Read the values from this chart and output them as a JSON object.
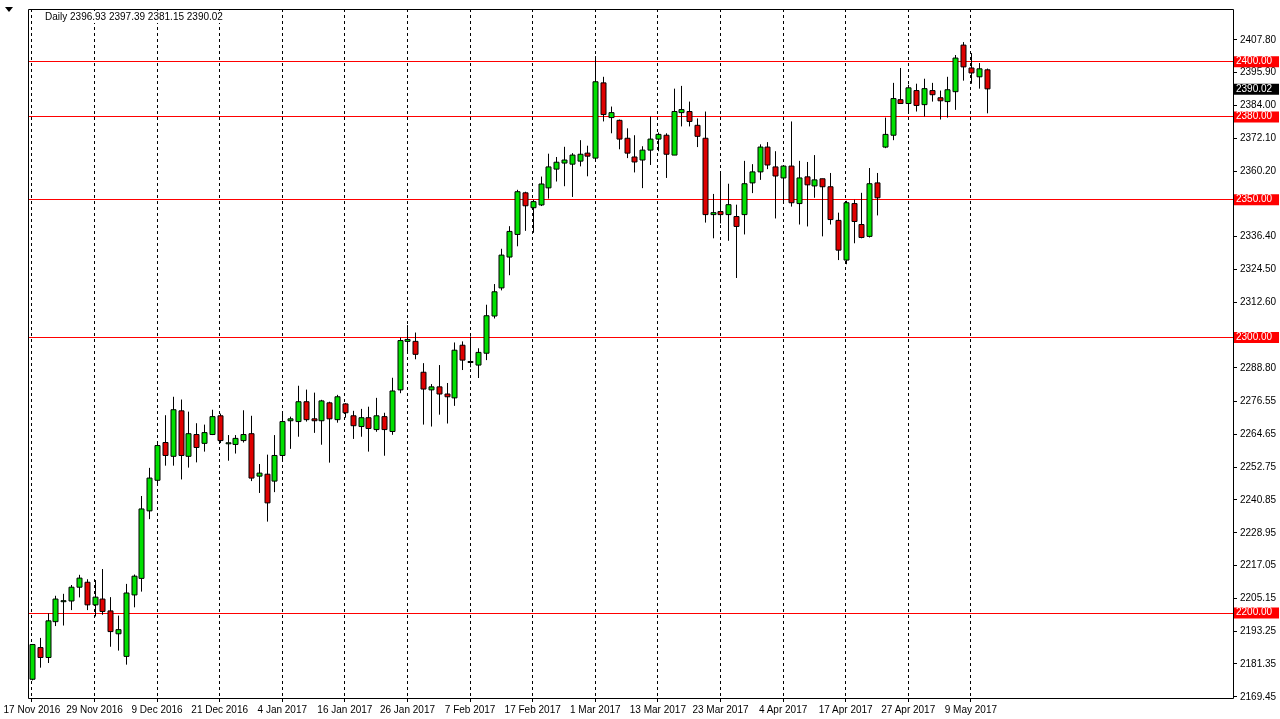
{
  "chart_data": {
    "type": "candlestick",
    "title": "Daily 2396.93 2397.39 2381.15 2390.02",
    "categories": [
      "17 Nov 2016",
      null,
      null,
      null,
      null,
      null,
      null,
      null,
      "29 Nov 2016",
      null,
      null,
      null,
      null,
      null,
      null,
      null,
      "9 Dec 2016",
      null,
      null,
      null,
      null,
      null,
      null,
      null,
      "21 Dec 2016",
      null,
      null,
      null,
      null,
      null,
      null,
      null,
      "4 Jan 2017",
      null,
      null,
      null,
      null,
      null,
      null,
      null,
      "16 Jan 2017",
      null,
      null,
      null,
      null,
      null,
      null,
      null,
      "26 Jan 2017",
      null,
      null,
      null,
      null,
      null,
      null,
      null,
      "7 Feb 2017",
      null,
      null,
      null,
      null,
      null,
      null,
      null,
      "17 Feb 2017",
      null,
      null,
      null,
      null,
      null,
      null,
      null,
      "1 Mar 2017",
      null,
      null,
      null,
      null,
      null,
      null,
      null,
      "13 Mar 2017",
      null,
      null,
      null,
      null,
      null,
      null,
      null,
      "23 Mar 2017",
      null,
      null,
      null,
      null,
      null,
      null,
      null,
      "4 Apr 2017",
      null,
      null,
      null,
      null,
      null,
      null,
      null,
      "17 Apr 2017",
      null,
      null,
      null,
      null,
      null,
      null,
      null,
      "27 Apr 2017",
      null,
      null,
      null,
      null,
      null,
      null,
      null,
      "9 May 2017",
      null,
      null,
      null,
      null,
      null,
      null,
      null,
      null,
      null,
      null,
      null,
      null,
      null,
      null,
      null,
      null,
      null,
      null,
      null,
      null,
      null,
      null,
      null,
      null,
      null,
      null,
      null,
      null,
      null,
      null,
      null,
      null,
      null
    ],
    "ohlc": [
      [
        2175.8,
        2188.6,
        2175.4,
        2188.4
      ],
      [
        2187.3,
        2190.8,
        2180.0,
        2183.7
      ],
      [
        2183.7,
        2199.7,
        2181.7,
        2197.0
      ],
      [
        2196.7,
        2206.1,
        2195.1,
        2204.9
      ],
      [
        2204.3,
        2206.8,
        2195.3,
        2204.3
      ],
      [
        2204.2,
        2210.0,
        2200.9,
        2209.2
      ],
      [
        2209.2,
        2213.7,
        2205.5,
        2212.5
      ],
      [
        2211.0,
        2212.1,
        2200.9,
        2202.8
      ],
      [
        2202.8,
        2211.8,
        2198.6,
        2205.6
      ],
      [
        2204.9,
        2215.8,
        2199.2,
        2200.4
      ],
      [
        2200.6,
        2205.6,
        2187.6,
        2193.1
      ],
      [
        2192.3,
        2198.9,
        2186.2,
        2193.8
      ],
      [
        2184.1,
        2210.4,
        2181.1,
        2207.1
      ],
      [
        2206.4,
        2213.8,
        2201.9,
        2213.2
      ],
      [
        2212.4,
        2242.3,
        2207.6,
        2237.6
      ],
      [
        2236.9,
        2252.5,
        2233.9,
        2248.8
      ],
      [
        2248.0,
        2261.7,
        2246.2,
        2260.6
      ],
      [
        2261.7,
        2271.6,
        2253.3,
        2257.0
      ],
      [
        2256.7,
        2278.3,
        2253.3,
        2273.6
      ],
      [
        2273.2,
        2277.3,
        2248.3,
        2257.0
      ],
      [
        2256.7,
        2272.9,
        2252.6,
        2264.9
      ],
      [
        2264.6,
        2268.7,
        2254.5,
        2259.9
      ],
      [
        2261.4,
        2268.2,
        2258.4,
        2265.3
      ],
      [
        2264.6,
        2273.6,
        2264.4,
        2271.1
      ],
      [
        2271.4,
        2272.2,
        2261.5,
        2262.4
      ],
      [
        2261.6,
        2264.4,
        2255.1,
        2261.6
      ],
      [
        2261.0,
        2264.4,
        2257.7,
        2263.2
      ],
      [
        2262.4,
        2273.4,
        2261.7,
        2264.6
      ],
      [
        2264.9,
        2271.4,
        2247.7,
        2248.8
      ],
      [
        2249.5,
        2253.9,
        2243.4,
        2250.6
      ],
      [
        2250.2,
        2257.3,
        2233.0,
        2239.8
      ],
      [
        2247.7,
        2264.4,
        2243.7,
        2257.0
      ],
      [
        2257.0,
        2272.5,
        2255.3,
        2269.3
      ],
      [
        2269.6,
        2271.1,
        2259.4,
        2270.3
      ],
      [
        2269.3,
        2282.3,
        2263.8,
        2276.5
      ],
      [
        2276.5,
        2280.9,
        2269.3,
        2270.0
      ],
      [
        2270.3,
        2279.8,
        2265.2,
        2269.6
      ],
      [
        2269.6,
        2277.2,
        2260.9,
        2276.8
      ],
      [
        2276.1,
        2276.5,
        2254.4,
        2270.3
      ],
      [
        2270.0,
        2279.0,
        2268.9,
        2278.3
      ],
      [
        2275.7,
        2276.0,
        2270.7,
        2272.5
      ],
      [
        2271.4,
        2273.2,
        2263.0,
        2267.8
      ],
      [
        2267.5,
        2273.9,
        2263.8,
        2270.7
      ],
      [
        2270.7,
        2274.7,
        2258.4,
        2266.8
      ],
      [
        2266.4,
        2277.9,
        2265.6,
        2271.4
      ],
      [
        2271.1,
        2272.5,
        2256.9,
        2266.4
      ],
      [
        2265.7,
        2285.2,
        2264.5,
        2280.4
      ],
      [
        2280.8,
        2299.8,
        2279.6,
        2298.7
      ],
      [
        2298.4,
        2304.3,
        2294.3,
        2299.1
      ],
      [
        2298.4,
        2301.6,
        2291.9,
        2293.7
      ],
      [
        2287.2,
        2290.5,
        2268.2,
        2281.1
      ],
      [
        2280.8,
        2282.9,
        2267.5,
        2281.9
      ],
      [
        2281.9,
        2289.8,
        2271.8,
        2279.3
      ],
      [
        2279.3,
        2283.3,
        2268.6,
        2278.3
      ],
      [
        2277.9,
        2298.0,
        2275.0,
        2295.2
      ],
      [
        2297.0,
        2298.4,
        2288.0,
        2291.6
      ],
      [
        2291.1,
        2300.2,
        2289.0,
        2291.1
      ],
      [
        2289.8,
        2295.9,
        2285.1,
        2294.4
      ],
      [
        2294.1,
        2311.7,
        2291.6,
        2307.7
      ],
      [
        2307.6,
        2319.2,
        2306.7,
        2316.4
      ],
      [
        2317.8,
        2332.0,
        2316.9,
        2329.7
      ],
      [
        2329.0,
        2340.2,
        2322.4,
        2338.3
      ],
      [
        2337.2,
        2353.4,
        2332.9,
        2352.7
      ],
      [
        2352.3,
        2352.7,
        2338.5,
        2347.6
      ],
      [
        2346.9,
        2349.8,
        2337.8,
        2349.1
      ],
      [
        2347.9,
        2358.2,
        2347.5,
        2355.5
      ],
      [
        2354.1,
        2366.5,
        2350.2,
        2361.7
      ],
      [
        2360.9,
        2365.3,
        2356.4,
        2363.4
      ],
      [
        2363.1,
        2369.0,
        2354.7,
        2364.2
      ],
      [
        2362.7,
        2366.7,
        2350.8,
        2366.0
      ],
      [
        2363.8,
        2371.4,
        2361.9,
        2366.3
      ],
      [
        2366.7,
        2369.4,
        2358.3,
        2365.6
      ],
      [
        2364.9,
        2401.9,
        2364.5,
        2392.6
      ],
      [
        2392.2,
        2394.4,
        2378.2,
        2380.7
      ],
      [
        2379.6,
        2383.6,
        2373.9,
        2381.4
      ],
      [
        2378.6,
        2378.9,
        2368.1,
        2371.8
      ],
      [
        2372.1,
        2375.7,
        2364.9,
        2366.7
      ],
      [
        2365.3,
        2373.2,
        2359.7,
        2363.5
      ],
      [
        2364.2,
        2369.2,
        2354.0,
        2367.8
      ],
      [
        2367.8,
        2380.0,
        2362.4,
        2371.8
      ],
      [
        2371.8,
        2374.2,
        2367.4,
        2373.5
      ],
      [
        2373.2,
        2373.9,
        2357.7,
        2366.3
      ],
      [
        2366.0,
        2390.1,
        2366.0,
        2381.8
      ],
      [
        2381.4,
        2391.1,
        2376.4,
        2382.5
      ],
      [
        2381.8,
        2385.4,
        2376.4,
        2378.2
      ],
      [
        2376.8,
        2379.3,
        2368.9,
        2372.8
      ],
      [
        2372.1,
        2381.8,
        2341.5,
        2344.4
      ],
      [
        2344.4,
        2351.9,
        2335.8,
        2345.1
      ],
      [
        2345.5,
        2359.2,
        2341.2,
        2344.4
      ],
      [
        2344.4,
        2355.6,
        2334.9,
        2348.0
      ],
      [
        2343.7,
        2348.0,
        2321.4,
        2340.1
      ],
      [
        2344.4,
        2363.9,
        2337.2,
        2355.6
      ],
      [
        2355.9,
        2362.7,
        2352.2,
        2359.9
      ],
      [
        2359.9,
        2369.9,
        2357.0,
        2368.9
      ],
      [
        2368.9,
        2370.7,
        2360.9,
        2362.4
      ],
      [
        2361.7,
        2367.4,
        2343.0,
        2358.4
      ],
      [
        2357.7,
        2362.0,
        2348.7,
        2362.0
      ],
      [
        2362.0,
        2378.2,
        2347.3,
        2348.7
      ],
      [
        2348.4,
        2363.9,
        2340.8,
        2357.7
      ],
      [
        2358.1,
        2363.5,
        2340.1,
        2355.2
      ],
      [
        2354.8,
        2366.0,
        2350.5,
        2357.0
      ],
      [
        2357.4,
        2357.4,
        2336.5,
        2354.5
      ],
      [
        2354.5,
        2359.5,
        2340.8,
        2342.6
      ],
      [
        2342.3,
        2345.1,
        2327.9,
        2331.5
      ],
      [
        2327.9,
        2349.4,
        2326.4,
        2348.7
      ],
      [
        2348.4,
        2349.8,
        2334.0,
        2341.9
      ],
      [
        2340.8,
        2352.3,
        2335.8,
        2336.1
      ],
      [
        2336.5,
        2361.3,
        2336.1,
        2355.6
      ],
      [
        2355.9,
        2359.5,
        2344.1,
        2350.5
      ],
      [
        2368.9,
        2379.6,
        2368.5,
        2373.5
      ],
      [
        2373.2,
        2392.2,
        2371.4,
        2386.5
      ],
      [
        2386.1,
        2397.6,
        2384.7,
        2384.7
      ],
      [
        2384.7,
        2391.5,
        2381.8,
        2390.4
      ],
      [
        2389.4,
        2391.9,
        2381.8,
        2384.0
      ],
      [
        2384.3,
        2393.7,
        2380.0,
        2390.1
      ],
      [
        2389.4,
        2392.2,
        2385.4,
        2387.9
      ],
      [
        2386.8,
        2389.4,
        2378.9,
        2385.7
      ],
      [
        2385.4,
        2394.4,
        2379.6,
        2389.7
      ],
      [
        2389.0,
        2402.3,
        2382.4,
        2401.2
      ],
      [
        2405.9,
        2407.0,
        2393.0,
        2398.0
      ],
      [
        2397.6,
        2403.0,
        2391.9,
        2395.8
      ],
      [
        2394.4,
        2399.4,
        2390.1,
        2397.3
      ],
      [
        2396.93,
        2397.39,
        2381.15,
        2390.02
      ],
      null,
      null,
      null,
      null,
      null,
      null,
      null,
      null,
      null,
      null,
      null,
      null,
      null,
      null,
      null,
      null,
      null,
      null,
      null,
      null,
      null,
      null,
      null,
      null,
      null,
      null,
      null,
      null,
      null,
      null,
      null
    ],
    "colors": [
      "#00e000",
      "#e00000",
      "#00e000",
      "#00e000",
      "#00e000",
      "#00e000",
      "#00e000",
      "#e00000",
      "#00e000",
      "#e00000",
      "#e00000",
      "#00e000",
      "#00e000",
      "#00e000",
      "#00e000",
      "#00e000",
      "#00e000",
      "#e00000",
      "#00e000",
      "#e00000",
      "#00e000",
      "#e00000",
      "#00e000",
      "#00e000",
      "#e00000",
      "#00e000",
      "#00e000",
      "#00e000",
      "#e00000",
      "#00e000",
      "#e00000",
      "#00e000",
      "#00e000",
      "#00e000",
      "#00e000",
      "#e00000",
      "#e00000",
      "#00e000",
      "#e00000",
      "#00e000",
      "#e00000",
      "#e00000",
      "#00e000",
      "#e00000",
      "#00e000",
      "#e00000",
      "#00e000",
      "#00e000",
      "#00e000",
      "#e00000",
      "#e00000",
      "#00e000",
      "#e00000",
      "#e00000",
      "#00e000",
      "#e00000",
      "#00e000",
      "#00e000",
      "#00e000",
      "#00e000",
      "#00e000",
      "#00e000",
      "#00e000",
      "#e00000",
      "#00e000",
      "#00e000",
      "#00e000",
      "#00e000",
      "#00e000",
      "#00e000",
      "#00e000",
      "#e00000",
      "#00e000",
      "#e00000",
      "#00e000",
      "#e00000",
      "#e00000",
      "#e00000",
      "#00e000",
      "#00e000",
      "#00e000",
      "#e00000",
      "#00e000",
      "#00e000",
      "#e00000",
      "#e00000",
      "#e00000",
      "#00e000",
      "#e00000",
      "#00e000",
      "#e00000",
      "#00e000",
      "#00e000",
      "#00e000",
      "#e00000",
      "#e00000",
      "#00e000",
      "#e00000",
      "#00e000",
      "#e00000",
      "#00e000",
      "#e00000",
      "#e00000",
      "#e00000",
      "#00e000",
      "#e00000",
      "#e00000",
      "#00e000",
      "#e00000",
      "#00e000",
      "#00e000",
      "#e00000",
      "#00e000",
      "#e00000",
      "#00e000",
      "#e00000",
      "#e00000",
      "#00e000",
      "#00e000",
      "#e00000",
      "#e00000",
      "#00e000",
      "#e00000",
      null,
      null,
      null,
      null,
      null,
      null,
      null,
      null,
      null,
      null,
      null,
      null,
      null,
      null,
      null,
      null,
      null,
      null,
      null,
      null,
      null,
      null,
      null,
      null,
      null,
      null,
      null,
      null,
      null,
      null,
      null
    ],
    "ylim": [
      2169,
      2419
    ],
    "yticks": [
      2169.45,
      2181.35,
      2193.25,
      2205.15,
      2217.05,
      2228.95,
      2240.85,
      2252.75,
      2264.65,
      2276.55,
      {
        "value": 2288.8,
        "label": "2288.80"
      },
      {
        "value": 2312.6,
        "label": "2312.60"
      },
      {
        "value": 2324.5,
        "label": "2324.50"
      },
      {
        "value": 2336.4,
        "label": "2336.40"
      },
      {
        "value": 2360.2,
        "label": "2360.20"
      },
      {
        "value": 2372.1,
        "label": "2372.10"
      },
      {
        "value": 2384,
        "label": "2384.00"
      },
      {
        "value": 2395.9,
        "label": "2395.90"
      },
      {
        "value": 2407.8,
        "label": "2407.80"
      }
    ],
    "grid": "x",
    "ref_lines": [
      {
        "axis": "y",
        "value": 2400,
        "label": "2400.00",
        "color": "#ff0000"
      },
      {
        "axis": "y",
        "value": 2380,
        "label": "2380.00",
        "color": "#ff0000"
      },
      {
        "axis": "y",
        "value": 2350,
        "label": "2350.00",
        "color": "#ff0000"
      },
      {
        "axis": "y",
        "value": 2300,
        "label": "2300.00",
        "color": "#ff0000"
      },
      {
        "axis": "y",
        "value": 2200,
        "label": "2200.00",
        "color": "#ff0000"
      }
    ],
    "annotations": [
      "2390.02"
    ]
  }
}
